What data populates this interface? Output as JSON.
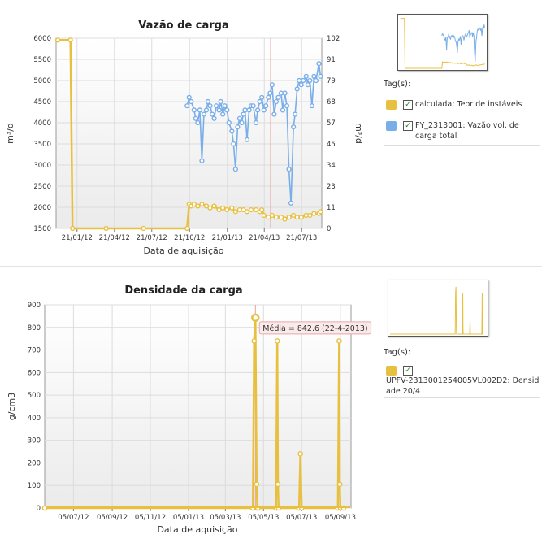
{
  "chart_data": [
    {
      "type": "line",
      "title": "Vazão de carga",
      "xlabel": "Data de aquisição",
      "ylabel": "m³/d",
      "y2label": "m³/d",
      "ylim": [
        1500,
        6000
      ],
      "y2lim": [
        0,
        102
      ],
      "yticks": [
        "1500",
        "2000",
        "2500",
        "3000",
        "3500",
        "4000",
        "4500",
        "5000",
        "5500",
        "6000"
      ],
      "y2ticks": [
        "0",
        "11",
        "23",
        "34",
        "45",
        "57",
        "68",
        "79",
        "91",
        "102"
      ],
      "xticks": [
        "21/01/12",
        "21/04/12",
        "21/07/12",
        "21/10/12",
        "21/01/13",
        "21/04/13",
        "21/07/13"
      ],
      "marker_date": "21/04/13",
      "series": [
        {
          "name": "calculada: Teor de instáveis",
          "axis": "right",
          "color": "#e8c040",
          "x": [
            "2011-12-05",
            "2012-01-05",
            "2012-01-10",
            "2012-04-01",
            "2012-07-01",
            "2012-10-15",
            "2012-10-20",
            "2012-10-25",
            "2012-11-01",
            "2012-11-10",
            "2012-11-20",
            "2012-12-01",
            "2012-12-10",
            "2012-12-20",
            "2013-01-01",
            "2013-01-10",
            "2013-01-20",
            "2013-02-01",
            "2013-02-10",
            "2013-02-20",
            "2013-03-01",
            "2013-03-10",
            "2013-03-20",
            "2013-04-01",
            "2013-04-10",
            "2013-04-15",
            "2013-04-20",
            "2013-05-01",
            "2013-05-10",
            "2013-05-20",
            "2013-06-01",
            "2013-06-10",
            "2013-06-20",
            "2013-07-01",
            "2013-07-10",
            "2013-07-20",
            "2013-08-01",
            "2013-08-10",
            "2013-08-20",
            "2013-09-01",
            "2013-09-05"
          ],
          "y": [
            101,
            101,
            0,
            0,
            0,
            0,
            13,
            12,
            13,
            12,
            13,
            12,
            11,
            12,
            10,
            11,
            10,
            11,
            9,
            10,
            10,
            9,
            10,
            10,
            9,
            10,
            7,
            6,
            7,
            6,
            6,
            5,
            6,
            7,
            6,
            6,
            7,
            7,
            8,
            8,
            9
          ]
        },
        {
          "name": "FY_2313001: Vazão vol. de carga total",
          "axis": "left",
          "color": "#7aaee8",
          "x": [
            "2012-10-15",
            "2012-10-20",
            "2012-10-25",
            "2012-11-01",
            "2012-11-05",
            "2012-11-10",
            "2012-11-15",
            "2012-11-20",
            "2012-11-25",
            "2012-12-01",
            "2012-12-05",
            "2012-12-10",
            "2012-12-15",
            "2012-12-20",
            "2012-12-25",
            "2013-01-01",
            "2013-01-05",
            "2013-01-10",
            "2013-01-15",
            "2013-01-20",
            "2013-01-25",
            "2013-02-01",
            "2013-02-05",
            "2013-02-10",
            "2013-02-15",
            "2013-02-20",
            "2013-02-25",
            "2013-03-01",
            "2013-03-05",
            "2013-03-10",
            "2013-03-15",
            "2013-03-20",
            "2013-03-25",
            "2013-04-01",
            "2013-04-05",
            "2013-04-10",
            "2013-04-15",
            "2013-04-20",
            "2013-04-25",
            "2013-05-01",
            "2013-05-05",
            "2013-05-10",
            "2013-05-15",
            "2013-05-20",
            "2013-05-25",
            "2013-06-01",
            "2013-06-05",
            "2013-06-10",
            "2013-06-15",
            "2013-06-20",
            "2013-06-25",
            "2013-07-01",
            "2013-07-05",
            "2013-07-10",
            "2013-07-15",
            "2013-07-20",
            "2013-07-25",
            "2013-08-01",
            "2013-08-05",
            "2013-08-10",
            "2013-08-15",
            "2013-08-20",
            "2013-08-25",
            "2013-09-01",
            "2013-09-05"
          ],
          "y": [
            4400,
            4600,
            4500,
            4300,
            4100,
            4000,
            4300,
            3100,
            4200,
            4300,
            4500,
            4400,
            4200,
            4100,
            4400,
            4300,
            4500,
            4200,
            4400,
            4300,
            4000,
            3800,
            3500,
            2900,
            3900,
            4100,
            4000,
            4200,
            4300,
            3600,
            4300,
            4400,
            4400,
            4000,
            4300,
            4500,
            4600,
            4300,
            4400,
            4600,
            4700,
            4900,
            4200,
            4500,
            4600,
            4700,
            4300,
            4700,
            4400,
            2900,
            2100,
            3900,
            4200,
            4800,
            5000,
            4900,
            5000,
            5100,
            4900,
            5000,
            4400,
            5100,
            5000,
            5400,
            5100
          ]
        }
      ]
    },
    {
      "type": "line",
      "title": "Densidade da carga",
      "xlabel": "Data de aquisição",
      "ylabel": "g/cm3",
      "ylim": [
        0,
        900
      ],
      "yticks": [
        "0",
        "100",
        "200",
        "300",
        "400",
        "500",
        "600",
        "700",
        "800",
        "900"
      ],
      "xticks": [
        "05/07/12",
        "05/09/12",
        "05/11/12",
        "05/01/13",
        "05/03/13",
        "05/05/13",
        "05/07/13",
        "05/09/13"
      ],
      "tooltip": "Média = 842.6 (22-4-2013)",
      "series": [
        {
          "name": "UPFV-2313001254005VL002D2: Densidade 20/4",
          "color": "#e8c040",
          "x": [
            "2012-05-20",
            "2013-04-18",
            "2013-04-20",
            "2013-04-22",
            "2013-04-24",
            "2013-04-25",
            "2013-04-26",
            "2013-05-25",
            "2013-05-27",
            "2013-05-28",
            "2013-05-29",
            "2013-07-01",
            "2013-07-03",
            "2013-07-05",
            "2013-09-01",
            "2013-09-03",
            "2013-09-04",
            "2013-09-05",
            "2013-09-10"
          ],
          "y": [
            0,
            0,
            740,
            843,
            105,
            0,
            0,
            0,
            740,
            105,
            0,
            0,
            240,
            0,
            0,
            740,
            105,
            0,
            0
          ]
        }
      ]
    }
  ],
  "panel1": {
    "tags_label": "Tag(s):",
    "legend": [
      {
        "text": "calculada: Teor de instáveis",
        "check": "✓"
      },
      {
        "text": "FY_2313001: Vazão vol. de carga total",
        "check": "✓"
      }
    ]
  },
  "panel2": {
    "tags_label": "Tag(s):",
    "legend": [
      {
        "text": "UPFV-2313001254005VL002D2: Densidade 20/4",
        "check": "✓"
      }
    ]
  },
  "colors": {
    "gold": "#e8c040",
    "blue": "#7aaee8",
    "marker": "#e05050"
  }
}
